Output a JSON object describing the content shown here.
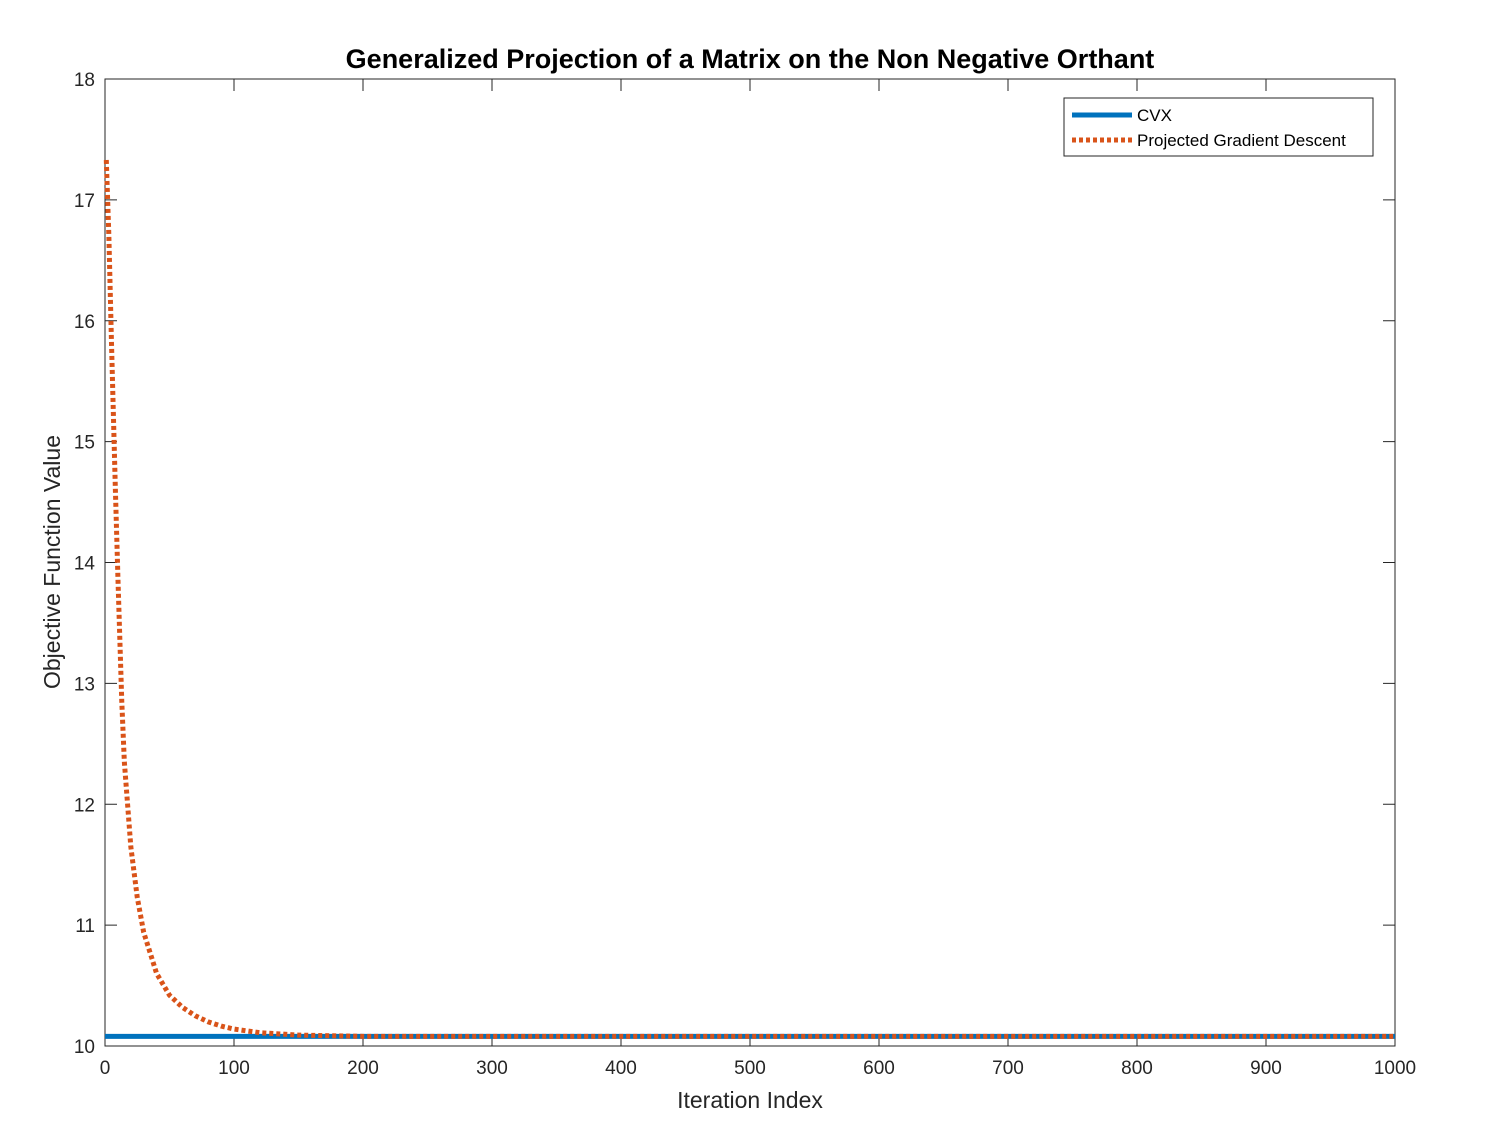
{
  "chart_data": {
    "type": "line",
    "title": "Generalized Projection of a Matrix on the Non Negative Orthant",
    "xlabel": "Iteration Index",
    "ylabel": "Objective Function Value",
    "xlim": [
      0,
      1000
    ],
    "ylim": [
      10,
      18
    ],
    "xticks": [
      "0",
      "100",
      "200",
      "300",
      "400",
      "500",
      "600",
      "700",
      "800",
      "900",
      "1000"
    ],
    "yticks": [
      "10",
      "11",
      "12",
      "13",
      "14",
      "15",
      "16",
      "17",
      "18"
    ],
    "grid": false,
    "legend_position": "top-right",
    "series": [
      {
        "name": "CVX",
        "color": "#0072BD",
        "style": "solid",
        "x": [
          0,
          1000
        ],
        "y": [
          10.08,
          10.08
        ]
      },
      {
        "name": "Projected Gradient Descent",
        "color": "#D95319",
        "style": "dotted",
        "x": [
          1,
          3,
          5,
          8,
          10,
          13,
          15,
          20,
          25,
          30,
          40,
          50,
          60,
          70,
          80,
          90,
          100,
          120,
          150,
          200,
          300,
          500,
          700,
          1000
        ],
        "y": [
          17.33,
          16.7,
          15.83,
          14.62,
          13.88,
          12.85,
          12.35,
          11.65,
          11.23,
          10.94,
          10.6,
          10.42,
          10.32,
          10.25,
          10.2,
          10.165,
          10.14,
          10.11,
          10.09,
          10.08,
          10.08,
          10.08,
          10.08,
          10.08
        ]
      }
    ]
  }
}
